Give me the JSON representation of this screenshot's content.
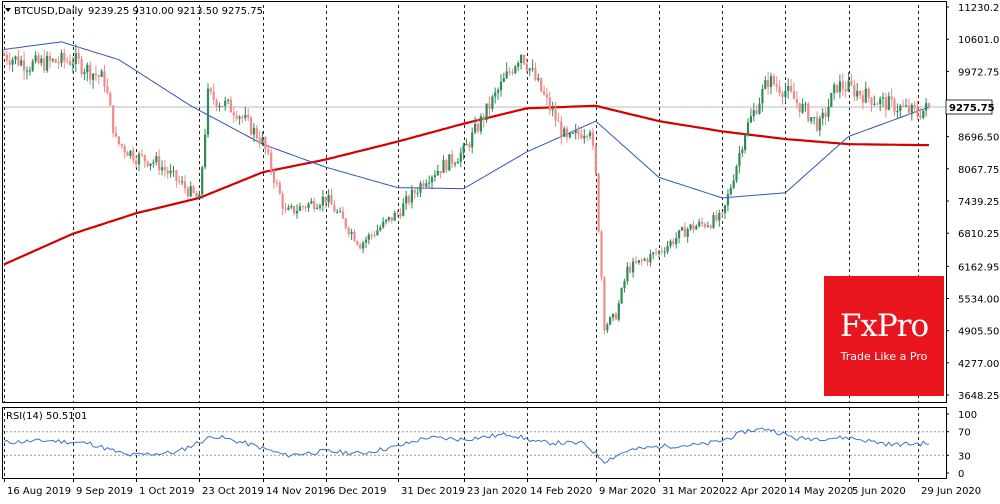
{
  "header": {
    "symbol": "BTCUSD,Daily",
    "ohlc": "9239.25 9310.00 9213.50 9275.75"
  },
  "current_price": "9275.75",
  "price_axis": [
    "11230.25",
    "10601.00",
    "9972.75",
    "9275.75",
    "8696.50",
    "8067.75",
    "7439.25",
    "6810.25",
    "6162.95",
    "5534.00",
    "4905.50",
    "4277.00",
    "3648.25"
  ],
  "rsi": {
    "label": "RSI(14) 50.5101",
    "axis": [
      "100",
      "70",
      "30",
      "0"
    ],
    "levels": [
      70,
      30
    ]
  },
  "date_labels": [
    "16 Aug 2019",
    "9 Sep 2019",
    "1 Oct 2019",
    "23 Oct 2019",
    "14 Nov 2019",
    "6 Dec 2019",
    "31 Dec 2019",
    "23 Jan 2020",
    "14 Feb 2020",
    "9 Mar 2020",
    "31 Mar 2020",
    "22 Apr 2020",
    "14 May 2020",
    "5 Jun 2020",
    "29 Jun 2020"
  ],
  "logo": {
    "title": "FxPro",
    "tagline": "Trade Like a Pro"
  },
  "colors": {
    "bull": "#2e8b57",
    "bear": "#ee8a8a",
    "ma_long": "#d40000",
    "ma_short": "#3355bb",
    "rsi_line": "#3d6fd1",
    "logo_bg": "#e8141e"
  },
  "chart_data": [
    {
      "type": "candlestick",
      "title": "BTCUSD,Daily",
      "x_start": "2019-08-16",
      "x_end": "2020-07-03",
      "ylim": [
        3648.25,
        11230.25
      ],
      "grid": true,
      "key_closes": [
        [
          "2019-08-16",
          10300
        ],
        [
          "2019-08-25",
          10100
        ],
        [
          "2019-09-09",
          10200
        ],
        [
          "2019-09-20",
          9800
        ],
        [
          "2019-09-24",
          8600
        ],
        [
          "2019-10-01",
          8300
        ],
        [
          "2019-10-08",
          8200
        ],
        [
          "2019-10-23",
          7450
        ],
        [
          "2019-10-26",
          9500
        ],
        [
          "2019-11-05",
          9200
        ],
        [
          "2019-11-14",
          8600
        ],
        [
          "2019-11-22",
          7200
        ],
        [
          "2019-12-06",
          7500
        ],
        [
          "2019-12-18",
          6600
        ],
        [
          "2019-12-31",
          7200
        ],
        [
          "2020-01-10",
          7900
        ],
        [
          "2020-01-23",
          8400
        ],
        [
          "2020-02-01",
          9300
        ],
        [
          "2020-02-12",
          10350
        ],
        [
          "2020-02-18",
          9700
        ],
        [
          "2020-02-28",
          8600
        ],
        [
          "2020-03-07",
          8900
        ],
        [
          "2020-03-09",
          7900
        ],
        [
          "2020-03-12",
          5000
        ],
        [
          "2020-03-16",
          5200
        ],
        [
          "2020-03-20",
          6100
        ],
        [
          "2020-03-31",
          6450
        ],
        [
          "2020-04-10",
          6900
        ],
        [
          "2020-04-22",
          7100
        ],
        [
          "2020-04-30",
          8800
        ],
        [
          "2020-05-08",
          9800
        ],
        [
          "2020-05-14",
          9600
        ],
        [
          "2020-05-26",
          8900
        ],
        [
          "2020-06-01",
          9700
        ],
        [
          "2020-06-05",
          9650
        ],
        [
          "2020-06-15",
          9400
        ],
        [
          "2020-06-29",
          9150
        ],
        [
          "2020-07-03",
          9275.75
        ]
      ],
      "ma_short_key": [
        [
          "2019-08-16",
          10400
        ],
        [
          "2019-09-05",
          10550
        ],
        [
          "2019-09-25",
          10200
        ],
        [
          "2019-10-20",
          9300
        ],
        [
          "2019-11-14",
          8550
        ],
        [
          "2019-12-06",
          8100
        ],
        [
          "2019-12-31",
          7700
        ],
        [
          "2020-01-23",
          7680
        ],
        [
          "2020-02-14",
          8400
        ],
        [
          "2020-03-09",
          9000
        ],
        [
          "2020-03-31",
          7900
        ],
        [
          "2020-04-22",
          7500
        ],
        [
          "2020-05-14",
          7600
        ],
        [
          "2020-06-05",
          8700
        ],
        [
          "2020-07-03",
          9275
        ]
      ],
      "ma_long_key": [
        [
          "2019-08-16",
          6200
        ],
        [
          "2019-09-09",
          6800
        ],
        [
          "2019-10-01",
          7200
        ],
        [
          "2019-10-23",
          7500
        ],
        [
          "2019-11-14",
          8000
        ],
        [
          "2019-12-06",
          8250
        ],
        [
          "2019-12-31",
          8600
        ],
        [
          "2020-01-23",
          8950
        ],
        [
          "2020-02-14",
          9250
        ],
        [
          "2020-03-09",
          9300
        ],
        [
          "2020-03-31",
          9000
        ],
        [
          "2020-04-22",
          8800
        ],
        [
          "2020-05-14",
          8650
        ],
        [
          "2020-06-05",
          8550
        ],
        [
          "2020-07-03",
          8530
        ]
      ],
      "rsi_key": [
        [
          "2019-08-16",
          52
        ],
        [
          "2019-09-01",
          55
        ],
        [
          "2019-09-15",
          50
        ],
        [
          "2019-09-28",
          30
        ],
        [
          "2019-10-15",
          35
        ],
        [
          "2019-10-28",
          63
        ],
        [
          "2019-11-10",
          48
        ],
        [
          "2019-11-22",
          30
        ],
        [
          "2019-12-06",
          37
        ],
        [
          "2019-12-18",
          33
        ],
        [
          "2019-12-31",
          45
        ],
        [
          "2020-01-10",
          60
        ],
        [
          "2020-01-23",
          57
        ],
        [
          "2020-02-08",
          66
        ],
        [
          "2020-02-18",
          52
        ],
        [
          "2020-03-05",
          50
        ],
        [
          "2020-03-12",
          20
        ],
        [
          "2020-03-20",
          38
        ],
        [
          "2020-03-31",
          45
        ],
        [
          "2020-04-15",
          48
        ],
        [
          "2020-04-22",
          55
        ],
        [
          "2020-05-01",
          72
        ],
        [
          "2020-05-08",
          75
        ],
        [
          "2020-05-18",
          58
        ],
        [
          "2020-06-05",
          60
        ],
        [
          "2020-06-20",
          48
        ],
        [
          "2020-07-03",
          50.5101
        ]
      ]
    }
  ]
}
